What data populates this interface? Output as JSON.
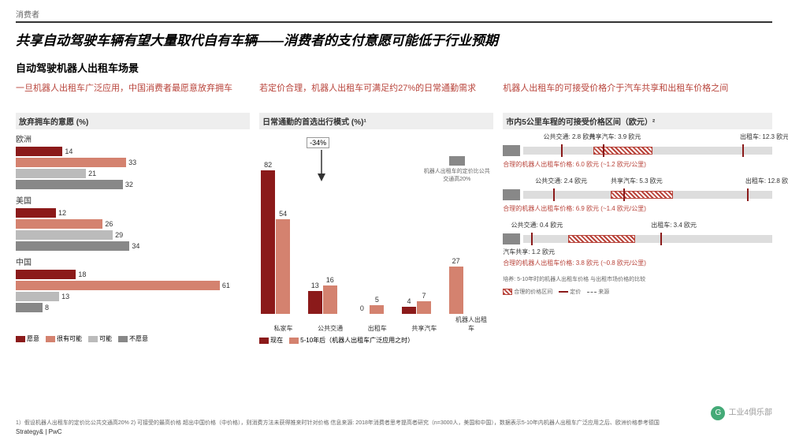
{
  "header": {
    "tag": "消费者"
  },
  "title": "共享自动驾驶车辆有望大量取代自有车辆——消费者的支付意愿可能低于行业预期",
  "section": "自动驾驶机器人出租车场景",
  "col1": {
    "title": "一旦机器人出租车广泛应用，中国消费者最愿意放弃拥车",
    "chartTitle": "放弃拥车的意愿 (%)",
    "regions": [
      {
        "name": "欧洲",
        "bars": [
          {
            "v": 14,
            "c": "#8b1a1a"
          },
          {
            "v": 33,
            "c": "#d4826f"
          },
          {
            "v": 21,
            "c": "#bbb"
          },
          {
            "v": 32,
            "c": "#888"
          }
        ]
      },
      {
        "name": "美国",
        "bars": [
          {
            "v": 12,
            "c": "#8b1a1a"
          },
          {
            "v": 26,
            "c": "#d4826f"
          },
          {
            "v": 29,
            "c": "#bbb"
          },
          {
            "v": 34,
            "c": "#888"
          }
        ]
      },
      {
        "name": "中国",
        "bars": [
          {
            "v": 18,
            "c": "#8b1a1a"
          },
          {
            "v": 61,
            "c": "#d4826f"
          },
          {
            "v": 13,
            "c": "#bbb"
          },
          {
            "v": 8,
            "c": "#888"
          }
        ]
      }
    ],
    "legend": [
      {
        "l": "愿意",
        "c": "#8b1a1a"
      },
      {
        "l": "很有可能",
        "c": "#d4826f"
      },
      {
        "l": "可能",
        "c": "#bbb"
      },
      {
        "l": "不愿意",
        "c": "#888"
      }
    ],
    "max": 70
  },
  "col2": {
    "title": "若定价合理，机器人出租车可满足约27%的日常通勤需求",
    "chartTitle": "日常通勤的首选出行模式 (%)¹",
    "callout": "-34%",
    "flagNote": "机器人出租车的定价比公共交通高20%",
    "cats": [
      {
        "name": "私家车",
        "v1": 82,
        "v2": 54
      },
      {
        "name": "公共交通",
        "v1": 13,
        "v2": 16
      },
      {
        "name": "出租车",
        "v1": 0,
        "v2": 5
      },
      {
        "name": "共享汽车",
        "v1": 4,
        "v2": 7
      },
      {
        "name": "机器人出租车",
        "v1": null,
        "v2": 27
      }
    ],
    "c1": "#8b1a1a",
    "c2": "#d4826f",
    "max": 90,
    "legend": [
      {
        "l": "现在",
        "c": "#8b1a1a"
      },
      {
        "l": "5-10年后（机器人出租车广泛应用之时）",
        "c": "#d4826f"
      }
    ]
  },
  "col3": {
    "title": "机器人出租车的可接受价格介于汽车共享和出租车价格之间",
    "chartTitle": "市内5公里车程的可接受价格区间（欧元）²",
    "rows": [
      {
        "flag": "eu",
        "pts": [
          {
            "l": "公共交通: 2.8 欧元",
            "p": 15
          },
          {
            "l": "共享汽车: 3.9 欧元",
            "p": 32
          },
          {
            "l": "出租车: 12.3 欧元",
            "p": 88
          }
        ],
        "hatch": {
          "s": 28,
          "e": 52
        },
        "note": "合理的机器人出租车价格: 6.0 欧元 (~1.2 欧元/公里)"
      },
      {
        "flag": "us",
        "pts": [
          {
            "l": "公共交通: 2.4 欧元",
            "p": 12
          },
          {
            "l": "共享汽车: 5.3 欧元",
            "p": 40
          },
          {
            "l": "出租车: 12.8 欧元",
            "p": 90
          }
        ],
        "hatch": {
          "s": 35,
          "e": 60
        },
        "note": "合理的机器人出租车价格: 6.9 欧元 (~1.4 欧元/公里)"
      },
      {
        "flag": "cn",
        "pts": [
          {
            "l": "公共交通: 0.4 欧元",
            "p": 3
          },
          {
            "l": "",
            "p": 0
          },
          {
            "l": "出租车: 3.4 欧元",
            "p": 55
          }
        ],
        "extra": "汽车共享: 1.2 欧元",
        "hatch": {
          "s": 18,
          "e": 45
        },
        "note": "合理的机器人出租车价格: 3.8 欧元 (~0.8 欧元/公里)"
      }
    ],
    "foot": "培养: 5-10年时的机器人出租车价格 与出租市场价格的比较",
    "endLegend": [
      {
        "l": "合理的价格区间",
        "t": "hatch"
      },
      {
        "l": "定价",
        "t": "line"
      },
      {
        "l": "来源",
        "t": "dash"
      }
    ]
  },
  "footnotes": "1）假设机器人出租车的定价比公共交通高20% 2) 可接受的最高价格 超出中国价格（中价格），则消费方法未获得推来时针对价格 \n信息来源: 2018年消费者思考提高者研究（n=3000人，美国和中国），数据表示5-10年内机器人出租车广泛应用之后、欧洲价格参考德国",
  "brand": "Strategy& | PwC",
  "watermark": "工业4俱乐部"
}
